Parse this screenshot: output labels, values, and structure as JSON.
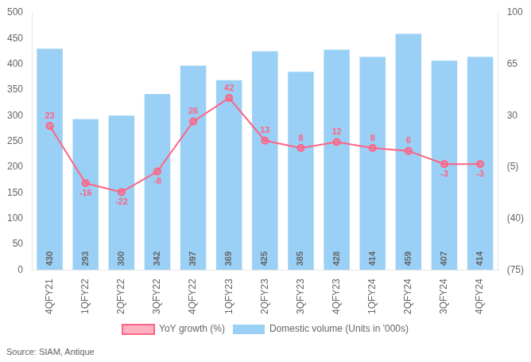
{
  "chart_data": {
    "type": "bar",
    "categories": [
      "4QFY21",
      "1QFY22",
      "2QFY22",
      "3QFY22",
      "4QFY22",
      "1QFY23",
      "2QFY23",
      "3QFY23",
      "4QFY23",
      "1QFY24",
      "2QFY24",
      "3QFY24",
      "4QFY24"
    ],
    "series": [
      {
        "name": "Domestic volume (Units in '000s)",
        "type": "bar",
        "values": [
          430,
          293,
          300,
          342,
          397,
          369,
          425,
          385,
          428,
          414,
          459,
          407,
          414
        ]
      },
      {
        "name": "YoY growth (%)",
        "type": "line",
        "axis": "y2",
        "marker": "circle",
        "values": [
          23,
          -16,
          -22,
          -8,
          26,
          42,
          13,
          8,
          12,
          8,
          6,
          -3,
          -3
        ]
      }
    ],
    "ylim": [
      0,
      500
    ],
    "yticks": [
      0,
      50,
      100,
      150,
      200,
      250,
      300,
      350,
      400,
      450,
      500
    ],
    "y2lim": [
      -75,
      100
    ],
    "y2ticks": [
      100,
      65,
      30,
      {
        "value": -5,
        "label": "(5)"
      },
      {
        "value": -40,
        "label": "(40)"
      },
      {
        "value": -75,
        "label": "(75)"
      }
    ],
    "data_labels": true,
    "grid": false,
    "legend": "bottom",
    "annotations": [
      "Source: SIAM, Antique"
    ]
  }
}
